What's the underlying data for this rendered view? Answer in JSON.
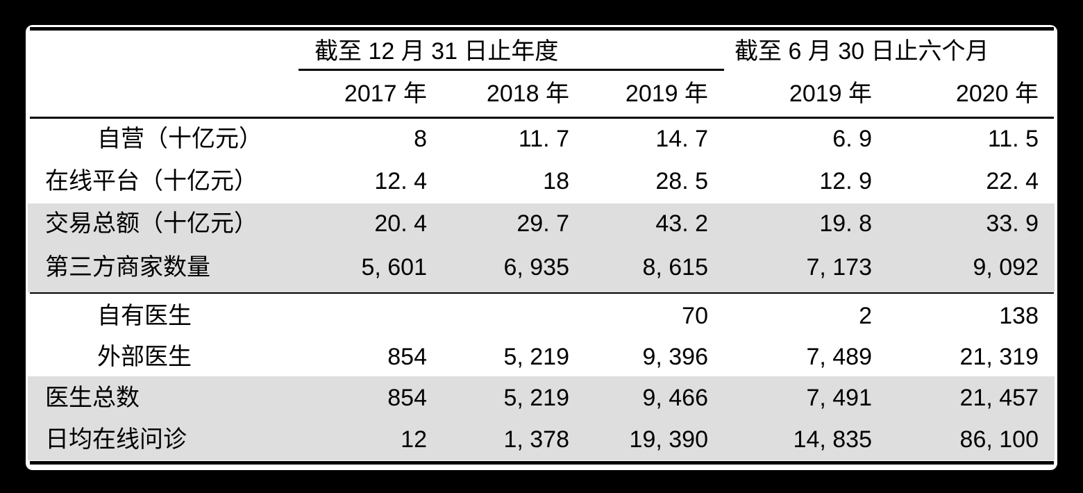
{
  "table": {
    "col_groups": [
      {
        "label": "截至 12 月 31 日止年度",
        "underline": true
      },
      {
        "label": "截至 6 月 30 日止六个月",
        "underline": false
      }
    ],
    "year_headers": [
      "2017 年",
      "2018 年",
      "2019 年",
      "2019 年",
      "2020 年"
    ],
    "rows": [
      {
        "label": "自营（十亿元）",
        "indent": true,
        "shaded": false,
        "values": [
          "8",
          "11. 7",
          "14. 7",
          "6. 9",
          "11. 5"
        ]
      },
      {
        "label": "在线平台（十亿元）",
        "indent": false,
        "shaded": false,
        "values": [
          "12. 4",
          "18",
          "28. 5",
          "12. 9",
          "22. 4"
        ]
      },
      {
        "label": "交易总额（十亿元）",
        "indent": false,
        "shaded": true,
        "values": [
          "20. 4",
          "29. 7",
          "43. 2",
          "19. 8",
          "33. 9"
        ]
      },
      {
        "label": "第三方商家数量",
        "indent": false,
        "shaded": true,
        "values": [
          "5, 601",
          "6, 935",
          "8, 615",
          "7, 173",
          "9, 092"
        ]
      },
      {
        "label": "自有医生",
        "indent": true,
        "shaded": false,
        "values": [
          "",
          "",
          "70",
          "2",
          "138"
        ]
      },
      {
        "label": "外部医生",
        "indent": true,
        "shaded": false,
        "values": [
          "854",
          "5, 219",
          "9, 396",
          "7, 489",
          "21, 319"
        ]
      },
      {
        "label": "医生总数",
        "indent": false,
        "shaded": true,
        "values": [
          "854",
          "5, 219",
          "9, 466",
          "7, 491",
          "21, 457"
        ]
      },
      {
        "label": "日均在线问诊",
        "indent": false,
        "shaded": true,
        "values": [
          "12",
          "1, 378",
          "19, 390",
          "14, 835",
          "86, 100"
        ]
      }
    ]
  },
  "chart_data": {
    "type": "table",
    "title": "",
    "column_groups": [
      "截至 12 月 31 日止年度",
      "截至 6 月 30 日止六个月"
    ],
    "columns": [
      "2017 年",
      "2018 年",
      "2019 年",
      "2019 年",
      "2020 年"
    ],
    "row_labels": [
      "自营（十亿元）",
      "在线平台（十亿元）",
      "交易总额（十亿元）",
      "第三方商家数量",
      "自有医生",
      "外部医生",
      "医生总数",
      "日均在线问诊"
    ],
    "values": [
      [
        8,
        11.7,
        14.7,
        6.9,
        11.5
      ],
      [
        12.4,
        18,
        28.5,
        12.9,
        22.4
      ],
      [
        20.4,
        29.7,
        43.2,
        19.8,
        33.9
      ],
      [
        5601,
        6935,
        8615,
        7173,
        9092
      ],
      [
        null,
        null,
        70,
        2,
        138
      ],
      [
        854,
        5219,
        9396,
        7489,
        21319
      ],
      [
        854,
        5219,
        9466,
        7491,
        21457
      ],
      [
        12,
        1378,
        19390,
        14835,
        86100
      ]
    ]
  },
  "colors": {
    "frame": "#000000",
    "background": "#ffffff",
    "text": "#000000",
    "row_shading": "#dedede"
  }
}
